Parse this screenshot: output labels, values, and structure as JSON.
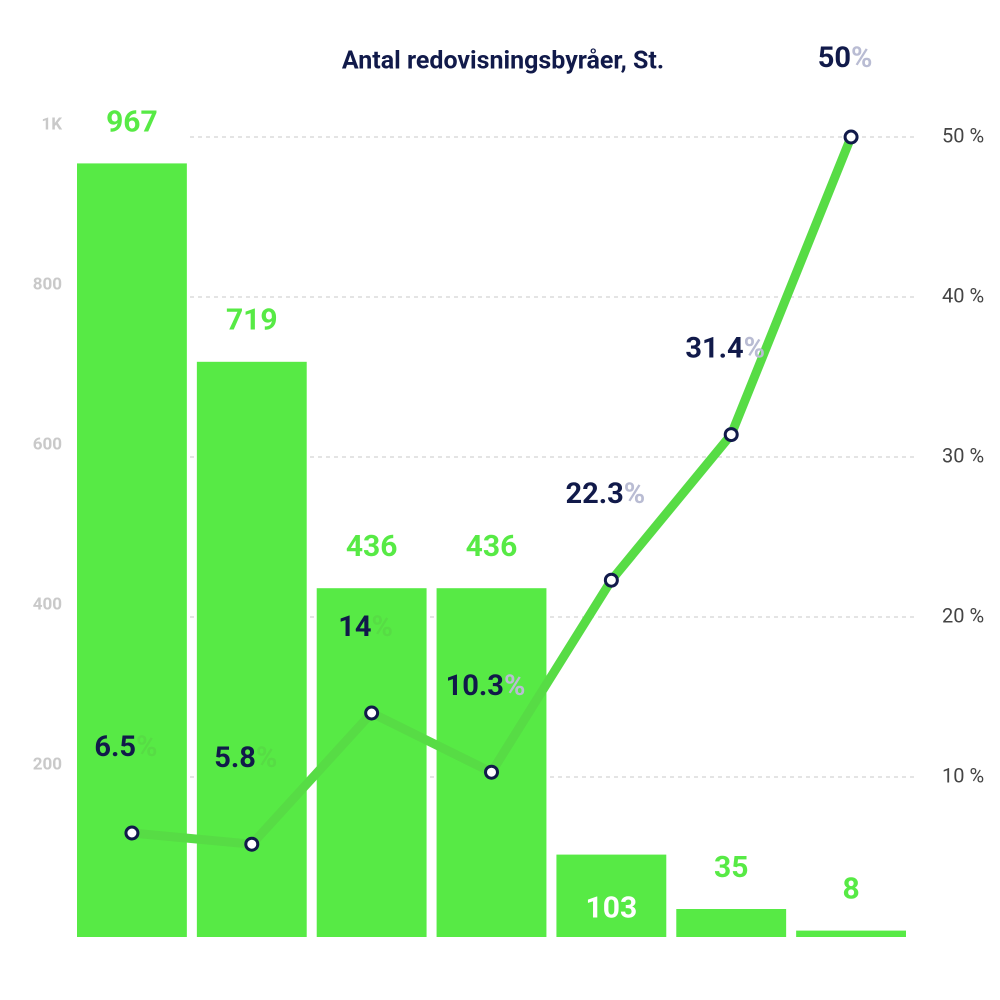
{
  "chart_data": {
    "type": "bar-line",
    "title": "Antal redovisningsbyråer, St.",
    "categories": [
      null,
      null,
      null,
      null,
      null,
      null,
      null
    ],
    "series": [
      {
        "type": "bar",
        "color": "#57ea45",
        "values": [
          967,
          719,
          436,
          436,
          103,
          35,
          8
        ]
      },
      {
        "type": "line",
        "axis": "y2",
        "color": "#57dc45",
        "values": [
          6.5,
          5.8,
          14,
          10.3,
          22.3,
          31.4,
          50
        ],
        "value_labels": [
          "6.5%",
          "5.8%",
          "14%",
          "10.3%",
          "22.3%",
          "31.4%",
          "50%"
        ]
      }
    ],
    "ylim": [
      0,
      1000
    ],
    "yticks": [
      200,
      400,
      600,
      800,
      {
        "value": 1000,
        "label": "1K"
      }
    ],
    "y2lim": [
      0,
      50
    ],
    "y2ticks": [
      {
        "value": 10,
        "label": "10 %"
      },
      {
        "value": 20,
        "label": "20 %"
      },
      {
        "value": 30,
        "label": "30 %"
      },
      {
        "value": 40,
        "label": "40 %"
      },
      {
        "value": 50,
        "label": "50 %"
      }
    ],
    "grid": true
  }
}
